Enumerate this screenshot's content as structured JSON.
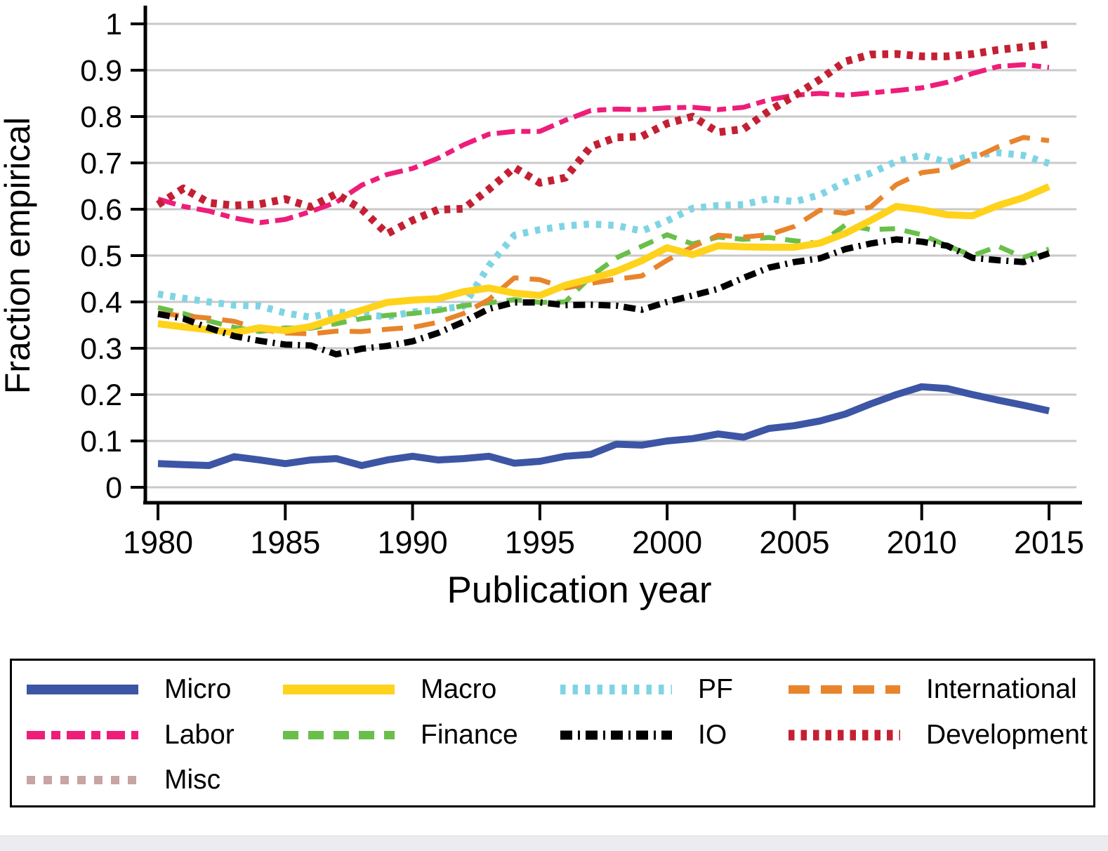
{
  "figure": {
    "ylabel": "Fraction empirical",
    "xlabel": "Publication year"
  },
  "chart_data": {
    "type": "line",
    "title": "",
    "xlabel": "Publication year",
    "ylabel": "Fraction empirical",
    "xlim": [
      1980,
      2015
    ],
    "ylim": [
      0,
      1
    ],
    "grid": true,
    "legend_position": "bottom",
    "xticks": [
      1980,
      1985,
      1990,
      1995,
      2000,
      2005,
      2010,
      2015
    ],
    "ytick_labels": [
      "1",
      "0.9",
      "0.8",
      "0.7",
      "0.6",
      "0.5",
      "0.4",
      "0.3",
      "0.2",
      "0.1",
      "0"
    ],
    "ytick_values": [
      1,
      0.9,
      0.8,
      0.7,
      0.6,
      0.5,
      0.4,
      0.3,
      0.2,
      0.1,
      0
    ],
    "x": [
      1980,
      1981,
      1982,
      1983,
      1984,
      1985,
      1986,
      1987,
      1988,
      1989,
      1990,
      1991,
      1992,
      1993,
      1994,
      1995,
      1996,
      1997,
      1998,
      1999,
      2000,
      2001,
      2002,
      2003,
      2004,
      2005,
      2006,
      2007,
      2008,
      2009,
      2010,
      2011,
      2012,
      2013,
      2014,
      2015
    ],
    "series": [
      {
        "name": "Micro",
        "color": "#3d55a5",
        "line_style": "solid",
        "values": [
          0.051,
          0.049,
          0.047,
          0.066,
          0.059,
          0.051,
          0.059,
          0.062,
          0.047,
          0.059,
          0.067,
          0.059,
          0.062,
          0.067,
          0.052,
          0.056,
          0.067,
          0.071,
          0.093,
          0.091,
          0.1,
          0.105,
          0.115,
          0.108,
          0.127,
          0.133,
          0.143,
          0.158,
          0.18,
          0.2,
          0.217,
          0.213,
          0.2,
          0.188,
          0.177,
          0.165
        ]
      },
      {
        "name": "Macro",
        "color": "#ffd21c",
        "line_style": "solid",
        "values": [
          0.353,
          0.346,
          0.34,
          0.334,
          0.344,
          0.338,
          0.347,
          0.365,
          0.382,
          0.399,
          0.404,
          0.407,
          0.422,
          0.43,
          0.419,
          0.414,
          0.436,
          0.45,
          0.466,
          0.489,
          0.517,
          0.502,
          0.521,
          0.519,
          0.518,
          0.518,
          0.527,
          0.548,
          0.576,
          0.606,
          0.599,
          0.588,
          0.586,
          0.608,
          0.625,
          0.649
        ]
      },
      {
        "name": "PF",
        "color": "#7fd4e4",
        "line_style": "dotted",
        "values": [
          0.417,
          0.408,
          0.4,
          0.393,
          0.391,
          0.376,
          0.367,
          0.379,
          0.373,
          0.368,
          0.378,
          0.383,
          0.391,
          0.478,
          0.544,
          0.556,
          0.564,
          0.568,
          0.565,
          0.553,
          0.575,
          0.602,
          0.608,
          0.61,
          0.623,
          0.616,
          0.631,
          0.659,
          0.678,
          0.703,
          0.717,
          0.701,
          0.716,
          0.722,
          0.716,
          0.699
        ]
      },
      {
        "name": "International",
        "color": "#e8842c",
        "line_style": "long-dash",
        "values": [
          0.376,
          0.37,
          0.365,
          0.358,
          0.341,
          0.333,
          0.331,
          0.337,
          0.336,
          0.341,
          0.345,
          0.356,
          0.375,
          0.405,
          0.452,
          0.448,
          0.43,
          0.44,
          0.449,
          0.456,
          0.49,
          0.519,
          0.544,
          0.54,
          0.545,
          0.563,
          0.598,
          0.591,
          0.605,
          0.653,
          0.679,
          0.686,
          0.709,
          0.735,
          0.755,
          0.748
        ]
      },
      {
        "name": "Labor",
        "color": "#ee1d7a",
        "line_style": "dash-dot-long",
        "values": [
          0.622,
          0.606,
          0.596,
          0.581,
          0.571,
          0.578,
          0.595,
          0.615,
          0.652,
          0.675,
          0.688,
          0.71,
          0.739,
          0.762,
          0.768,
          0.768,
          0.792,
          0.813,
          0.816,
          0.815,
          0.819,
          0.82,
          0.815,
          0.82,
          0.836,
          0.846,
          0.85,
          0.846,
          0.851,
          0.856,
          0.862,
          0.874,
          0.893,
          0.908,
          0.912,
          0.906
        ]
      },
      {
        "name": "Finance",
        "color": "#6abf4b",
        "line_style": "dashed",
        "values": [
          0.388,
          0.375,
          0.359,
          0.345,
          0.336,
          0.344,
          0.343,
          0.353,
          0.364,
          0.371,
          0.375,
          0.381,
          0.392,
          0.398,
          0.405,
          0.399,
          0.4,
          0.455,
          0.495,
          0.52,
          0.545,
          0.525,
          0.54,
          0.535,
          0.539,
          0.532,
          0.526,
          0.566,
          0.556,
          0.558,
          0.545,
          0.521,
          0.5,
          0.52,
          0.496,
          0.514
        ]
      },
      {
        "name": "IO",
        "color": "#000000",
        "line_style": "dash-dot",
        "values": [
          0.374,
          0.364,
          0.344,
          0.326,
          0.316,
          0.308,
          0.306,
          0.287,
          0.299,
          0.305,
          0.315,
          0.333,
          0.357,
          0.385,
          0.399,
          0.399,
          0.393,
          0.394,
          0.392,
          0.383,
          0.4,
          0.414,
          0.428,
          0.452,
          0.474,
          0.486,
          0.494,
          0.514,
          0.526,
          0.535,
          0.53,
          0.521,
          0.495,
          0.49,
          0.486,
          0.505
        ]
      },
      {
        "name": "Development",
        "color": "#c32033",
        "line_style": "dense-dot",
        "values": [
          0.61,
          0.645,
          0.614,
          0.608,
          0.611,
          0.622,
          0.605,
          0.633,
          0.6,
          0.547,
          0.576,
          0.599,
          0.601,
          0.643,
          0.69,
          0.657,
          0.668,
          0.735,
          0.755,
          0.757,
          0.785,
          0.8,
          0.766,
          0.773,
          0.812,
          0.845,
          0.88,
          0.919,
          0.934,
          0.935,
          0.93,
          0.93,
          0.935,
          0.944,
          0.95,
          0.956
        ]
      },
      {
        "name": "Misc",
        "color": "#c6a5a3",
        "line_style": "short-dash",
        "values": []
      }
    ]
  }
}
